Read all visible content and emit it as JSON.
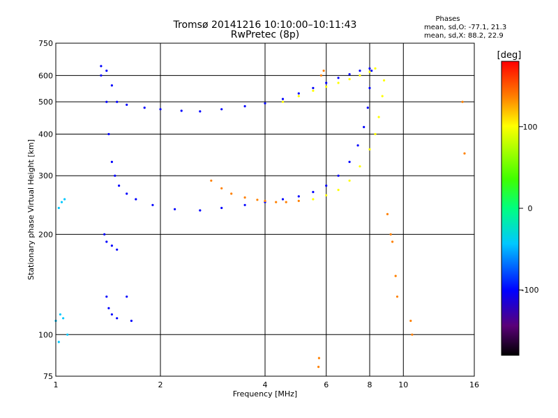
{
  "header": {
    "title_line1": "Tromsø 20141216 10:10:00–10:11:43",
    "title_line2": "RwPretec (8p)",
    "stats_title": "Phases",
    "stats_line1": "mean, sd,O: -77.1, 21.3",
    "stats_line2": "mean, sd,X: 88.2, 22.9"
  },
  "chart_data": {
    "type": "scatter",
    "xlabel": "Frequency [MHz]",
    "ylabel": "Stationary phase Virtual Height [km]",
    "x_scale": "log",
    "y_scale": "log",
    "xlim": [
      1,
      16
    ],
    "ylim": [
      75,
      750
    ],
    "x_ticks": [
      1,
      2,
      4,
      6,
      8,
      10,
      16
    ],
    "x_tick_labels": [
      "1",
      "2",
      "4",
      "6",
      "8",
      "10",
      "16"
    ],
    "y_ticks": [
      75,
      100,
      200,
      300,
      400,
      500,
      600,
      750
    ],
    "y_tick_labels": [
      "75",
      "100",
      "200",
      "300",
      "400",
      "500",
      "600",
      "750"
    ],
    "grid": true,
    "colorbar": {
      "label": "[deg]",
      "range": [
        -180,
        180
      ],
      "ticks": [
        100,
        0,
        -100
      ],
      "tick_labels": [
        "100",
        "0",
        "-100"
      ],
      "colormap": [
        "#000000",
        "#5a0078",
        "#0000ff",
        "#00c8ff",
        "#00ff80",
        "#40ff00",
        "#ffff00",
        "#ff8000",
        "#ff0000"
      ]
    },
    "series": [
      {
        "color_phase": -95,
        "points": [
          [
            1.35,
            640
          ],
          [
            1.4,
            620
          ],
          [
            1.45,
            560
          ],
          [
            1.5,
            500
          ],
          [
            1.6,
            490
          ],
          [
            1.8,
            480
          ],
          [
            2.0,
            475
          ],
          [
            2.3,
            470
          ],
          [
            2.6,
            468
          ],
          [
            3.0,
            475
          ],
          [
            3.5,
            485
          ],
          [
            4.0,
            495
          ],
          [
            4.5,
            510
          ],
          [
            5.0,
            530
          ],
          [
            5.5,
            550
          ],
          [
            6.0,
            570
          ],
          [
            6.5,
            590
          ],
          [
            7.0,
            605
          ],
          [
            7.5,
            620
          ],
          [
            8.0,
            630
          ]
        ]
      },
      {
        "color_phase": 80,
        "points": [
          [
            4.5,
            500
          ],
          [
            5.0,
            520
          ],
          [
            5.5,
            540
          ],
          [
            6.0,
            555
          ],
          [
            6.5,
            570
          ],
          [
            7.0,
            585
          ],
          [
            7.5,
            600
          ],
          [
            8.0,
            615
          ],
          [
            8.3,
            630
          ]
        ]
      },
      {
        "color_phase": -70,
        "points": [
          [
            1.35,
            600
          ],
          [
            1.4,
            500
          ],
          [
            1.42,
            400
          ],
          [
            1.45,
            330
          ],
          [
            1.48,
            300
          ],
          [
            1.52,
            280
          ],
          [
            1.6,
            265
          ],
          [
            1.7,
            255
          ],
          [
            1.9,
            245
          ],
          [
            2.2,
            238
          ],
          [
            2.6,
            236
          ],
          [
            3.0,
            240
          ],
          [
            3.5,
            245
          ],
          [
            4.0,
            250
          ],
          [
            4.5,
            255
          ],
          [
            5.0,
            260
          ],
          [
            5.5,
            268
          ],
          [
            6.0,
            280
          ],
          [
            6.5,
            300
          ],
          [
            7.0,
            330
          ],
          [
            7.4,
            370
          ],
          [
            7.7,
            420
          ],
          [
            7.9,
            480
          ],
          [
            8.0,
            550
          ],
          [
            8.1,
            620
          ]
        ]
      },
      {
        "color_phase": 90,
        "points": [
          [
            5.5,
            255
          ],
          [
            6.0,
            262
          ],
          [
            6.5,
            272
          ],
          [
            7.0,
            290
          ],
          [
            7.5,
            320
          ],
          [
            8.0,
            360
          ],
          [
            8.3,
            400
          ],
          [
            8.5,
            450
          ],
          [
            8.7,
            520
          ],
          [
            8.8,
            580
          ]
        ]
      },
      {
        "color_phase": 150,
        "points": [
          [
            2.8,
            290
          ],
          [
            3.0,
            275
          ],
          [
            3.2,
            265
          ],
          [
            3.5,
            258
          ],
          [
            3.8,
            254
          ],
          [
            4.0,
            252
          ],
          [
            4.3,
            250
          ],
          [
            4.6,
            250
          ],
          [
            5.0,
            252
          ]
        ]
      },
      {
        "color_phase": -40,
        "points": [
          [
            1.02,
            240
          ],
          [
            1.04,
            250
          ],
          [
            1.06,
            255
          ],
          [
            1.0,
            110
          ],
          [
            1.03,
            115
          ],
          [
            1.05,
            112
          ],
          [
            1.02,
            95
          ],
          [
            1.08,
            100
          ]
        ]
      },
      {
        "color_phase": -100,
        "points": [
          [
            1.38,
            200
          ],
          [
            1.4,
            190
          ],
          [
            1.45,
            185
          ],
          [
            1.5,
            180
          ],
          [
            1.4,
            130
          ],
          [
            1.42,
            120
          ],
          [
            1.45,
            115
          ],
          [
            1.5,
            112
          ],
          [
            1.6,
            130
          ],
          [
            1.65,
            110
          ]
        ]
      },
      {
        "color_phase": 130,
        "points": [
          [
            5.8,
            600
          ],
          [
            5.9,
            620
          ],
          [
            9.0,
            230
          ],
          [
            9.2,
            200
          ],
          [
            9.3,
            190
          ],
          [
            9.5,
            150
          ],
          [
            9.6,
            130
          ],
          [
            10.5,
            110
          ],
          [
            10.6,
            100
          ],
          [
            5.7,
            80
          ],
          [
            5.72,
            85
          ],
          [
            14.8,
            500
          ],
          [
            15.0,
            350
          ]
        ]
      }
    ]
  }
}
